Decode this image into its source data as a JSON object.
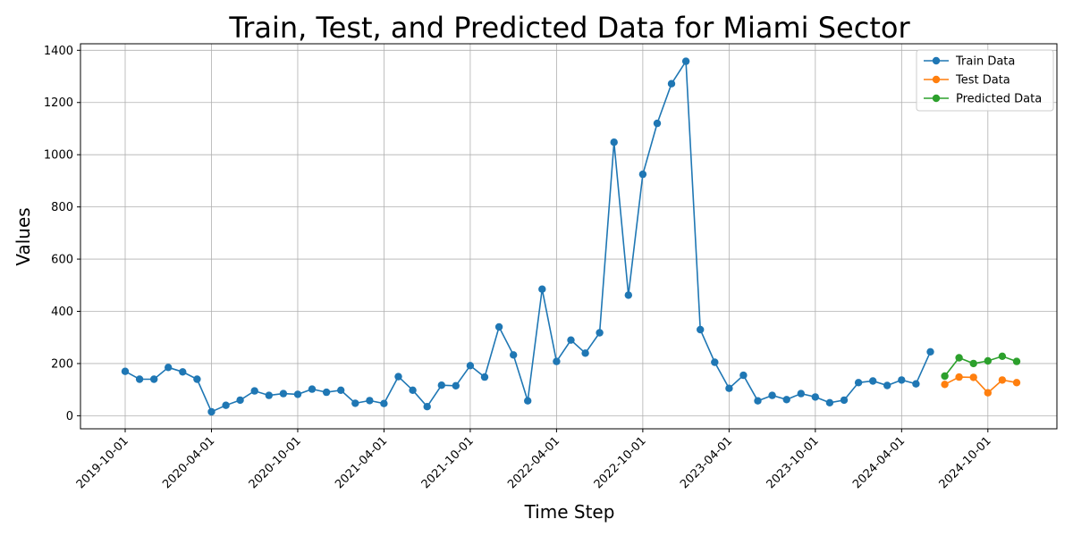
{
  "chart_data": {
    "type": "line",
    "title": "Train, Test, and Predicted Data for Miami Sector",
    "xlabel": "Time Step",
    "ylabel": "Values",
    "ylim": [
      -50,
      1425
    ],
    "grid": true,
    "legend_position": "top-right",
    "x_ticks": [
      "2019-10-01",
      "2020-04-01",
      "2020-10-01",
      "2021-04-01",
      "2021-10-01",
      "2022-04-01",
      "2022-10-01",
      "2023-04-01",
      "2023-10-01",
      "2024-04-01",
      "2024-10-01"
    ],
    "y_ticks": [
      0,
      200,
      400,
      600,
      800,
      1000,
      1200,
      1400
    ],
    "series": [
      {
        "name": "Train Data",
        "color": "#1f77b4",
        "start": "2019-10-01",
        "values": [
          170,
          140,
          140,
          185,
          168,
          140,
          15,
          40,
          60,
          95,
          78,
          85,
          82,
          102,
          90,
          98,
          48,
          58,
          47,
          150,
          98,
          35,
          117,
          115,
          192,
          148,
          340,
          233,
          57,
          485,
          208,
          290,
          240,
          318,
          1048,
          462,
          925,
          1120,
          1272,
          1358,
          330,
          205,
          105,
          155,
          57,
          78,
          62,
          85,
          72,
          50,
          60,
          127,
          133,
          116,
          137,
          122,
          245
        ]
      },
      {
        "name": "Test Data",
        "color": "#ff7f0e",
        "start": "2024-07-01",
        "values": [
          120,
          148,
          147,
          88,
          137,
          127
        ]
      },
      {
        "name": "Predicted Data",
        "color": "#2ca02c",
        "start": "2024-07-01",
        "values": [
          152,
          222,
          200,
          210,
          228,
          208
        ]
      }
    ]
  }
}
